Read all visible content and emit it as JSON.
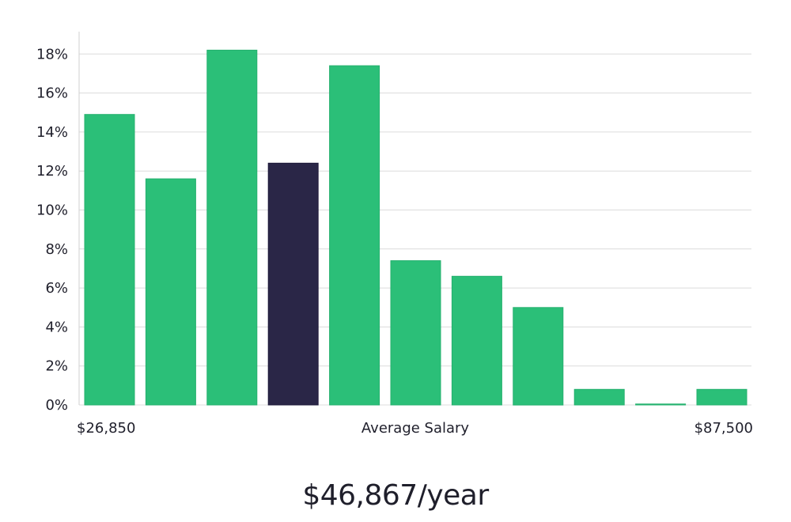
{
  "chart_data": {
    "type": "bar",
    "title": "",
    "ylabel": "",
    "xlabel": "Average Salary",
    "x_range_start_label": "$26,850",
    "x_range_end_label": "$87,500",
    "ylim": [
      0,
      19
    ],
    "ytick_values": [
      0,
      2,
      4,
      6,
      8,
      10,
      12,
      14,
      16,
      18
    ],
    "ytick_labels": [
      "0%",
      "2%",
      "4%",
      "6%",
      "8%",
      "10%",
      "12%",
      "14%",
      "16%",
      "18%"
    ],
    "values": [
      14.9,
      11.6,
      18.2,
      12.4,
      17.4,
      7.4,
      6.6,
      5.0,
      0.8,
      0.05,
      0.8
    ],
    "highlight_index": 3,
    "grid": true
  },
  "colors": {
    "bar": "#2bbf78",
    "bar_highlight": "#2a2647",
    "grid": "#dcdcdc",
    "axis": "#cfcfcf",
    "text": "#1f1f2b"
  },
  "summary": {
    "salary_text": "$46,867/year"
  }
}
